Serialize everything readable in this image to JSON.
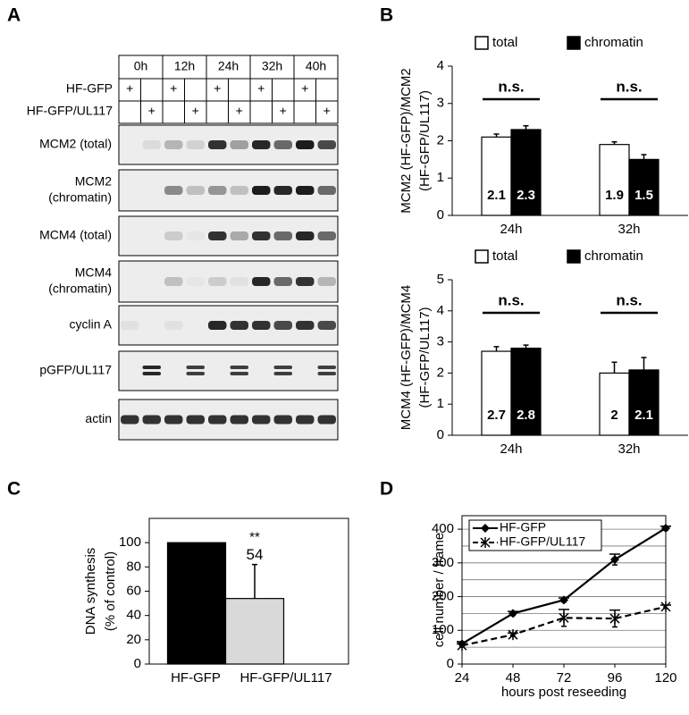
{
  "blot": {
    "panel": "A",
    "timepoints": [
      "0h",
      "12h",
      "24h",
      "32h",
      "40h"
    ],
    "conditions": [
      "HF-GFP",
      "HF-GFP/UL117"
    ],
    "mark": "+",
    "rows": [
      [
        "MCM2 (total)"
      ],
      [
        "MCM2",
        "(chromatin)"
      ],
      [
        "MCM4 (total)"
      ],
      [
        "MCM4",
        "(chromatin)"
      ],
      [
        "cyclin A"
      ],
      [
        "pGFP/UL117"
      ],
      [
        "actin"
      ]
    ]
  },
  "chart_data": [
    {
      "type": "bar",
      "panel": "B",
      "y_label": [
        "MCM2 (HF-GFP)/MCM2",
        "(HF-GFP/UL117)"
      ],
      "categories": [
        "24h",
        "32h"
      ],
      "series": [
        {
          "name": "total",
          "color": "#ffffff",
          "values": [
            2.1,
            1.9
          ],
          "errors": [
            0.08,
            0.07
          ]
        },
        {
          "name": "chromatin",
          "color": "#000000",
          "values": [
            2.3,
            1.5
          ],
          "errors": [
            0.1,
            0.13
          ]
        }
      ],
      "ylim": [
        0,
        4
      ],
      "yticks": [
        0,
        1,
        2,
        3,
        4
      ],
      "annotations": [
        "n.s.",
        "n.s."
      ],
      "data_labels": "inside",
      "legend": "top"
    },
    {
      "type": "bar",
      "y_label": [
        "MCM4 (HF-GFP)/MCM4",
        "(HF-GFP/UL117)"
      ],
      "categories": [
        "24h",
        "32h"
      ],
      "series": [
        {
          "name": "total",
          "color": "#ffffff",
          "values": [
            2.7,
            2
          ],
          "errors": [
            0.15,
            0.35
          ]
        },
        {
          "name": "chromatin",
          "color": "#000000",
          "values": [
            2.8,
            2.1
          ],
          "errors": [
            0.1,
            0.4
          ]
        }
      ],
      "ylim": [
        0,
        5
      ],
      "yticks": [
        0,
        1,
        2,
        3,
        4,
        5
      ],
      "annotations": [
        "n.s.",
        "n.s."
      ],
      "data_labels": "inside",
      "legend": "top"
    },
    {
      "type": "bar",
      "panel": "C",
      "y_label": [
        "DNA synthesis",
        "(% of control)"
      ],
      "categories": [
        "HF-GFP",
        "HF-GFP/UL117"
      ],
      "series": [
        {
          "colors": [
            "#000000",
            "#d9d9d9"
          ],
          "values": [
            100,
            54
          ],
          "errors": [
            null,
            28
          ],
          "value_labels": [
            null,
            "54"
          ],
          "significance": [
            null,
            "**"
          ]
        }
      ],
      "ylim": [
        0,
        120
      ],
      "yticks": [
        0,
        20,
        40,
        60,
        80,
        100
      ]
    },
    {
      "type": "line",
      "panel": "D",
      "y_label": [
        "cell number / frame"
      ],
      "x_label": "hours post reseeding",
      "x": [
        24,
        48,
        72,
        96,
        120
      ],
      "xlim": [
        24,
        120
      ],
      "xticks": [
        24,
        48,
        72,
        96,
        120
      ],
      "series": [
        {
          "name": "HF-GFP",
          "color": "#000000",
          "marker": "diamond",
          "dashed": false,
          "values": [
            60,
            150,
            190,
            310,
            403
          ],
          "errors": [
            6,
            6,
            6,
            16,
            6
          ]
        },
        {
          "name": "HF-GFP/UL117",
          "color": "#000000",
          "marker": "star",
          "dashed": true,
          "values": [
            55,
            87,
            137,
            135,
            170
          ],
          "errors": [
            5,
            5,
            25,
            25,
            5
          ]
        }
      ],
      "ylim": [
        0,
        440
      ],
      "yticks": [
        0,
        100,
        200,
        300,
        400
      ],
      "minor_gridlines": [
        50,
        150,
        250,
        350
      ],
      "grid": true,
      "legend": "upper left"
    }
  ]
}
